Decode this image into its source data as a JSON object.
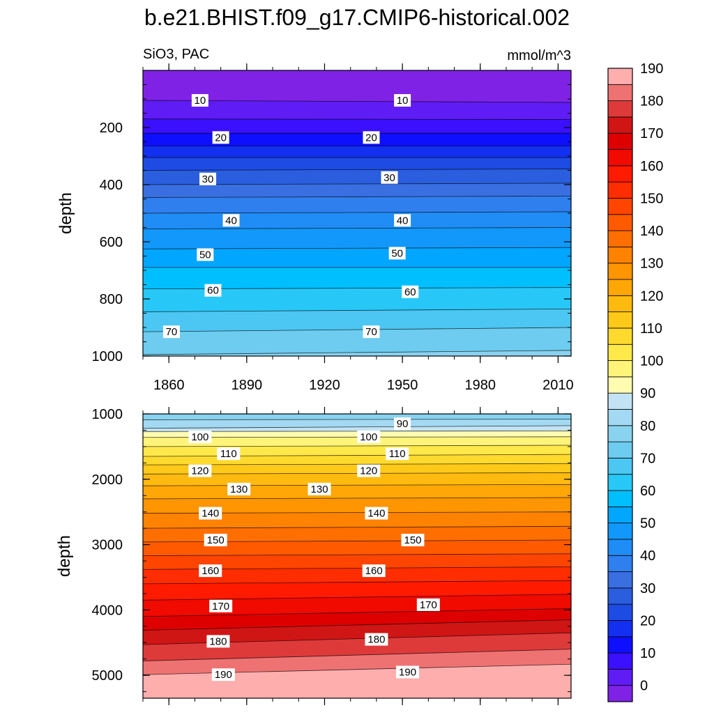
{
  "chart_data": {
    "type": "heatmap",
    "title": "b.e21.BHIST.f09_g17.CMIP6-historical.002",
    "variable_label": "SiO3, PAC",
    "units_label": "mmol/m^3",
    "x": {
      "tick_labels": [
        "1860",
        "1890",
        "1920",
        "1950",
        "1980",
        "2010"
      ],
      "tick_values": [
        1860,
        1890,
        1920,
        1950,
        1980,
        2010
      ],
      "range": [
        1850,
        2015
      ]
    },
    "panels": [
      {
        "name": "upper",
        "ylabel": "depth",
        "ylim": [
          0,
          1000
        ],
        "y_tick_labels": [
          "200",
          "400",
          "600",
          "800",
          "1000"
        ],
        "y_tick_values": [
          200,
          400,
          600,
          800,
          1000
        ],
        "contours": [
          {
            "level": 5,
            "depth_start": 105,
            "depth_end": 112
          },
          {
            "level": 10,
            "depth_start": 170,
            "depth_end": 172
          },
          {
            "level": 15,
            "depth_start": 220,
            "depth_end": 220
          },
          {
            "level": 20,
            "depth_start": 265,
            "depth_end": 265
          },
          {
            "level": 25,
            "depth_start": 305,
            "depth_end": 305
          },
          {
            "level": 30,
            "depth_start": 350,
            "depth_end": 345
          },
          {
            "level": 35,
            "depth_start": 400,
            "depth_end": 395
          },
          {
            "level": 40,
            "depth_start": 445,
            "depth_end": 440
          },
          {
            "level": 45,
            "depth_start": 500,
            "depth_end": 495
          },
          {
            "level": 50,
            "depth_start": 555,
            "depth_end": 550
          },
          {
            "level": 55,
            "depth_start": 625,
            "depth_end": 620
          },
          {
            "level": 60,
            "depth_start": 690,
            "depth_end": 690
          },
          {
            "level": 65,
            "depth_start": 765,
            "depth_end": 760
          },
          {
            "level": 70,
            "depth_start": 845,
            "depth_end": 835
          },
          {
            "level": 75,
            "depth_start": 915,
            "depth_end": 900
          },
          {
            "level": 80,
            "depth_start": 995,
            "depth_end": 980
          }
        ],
        "labels": [
          {
            "text": "10",
            "year": 1872,
            "depth": 105
          },
          {
            "text": "10",
            "year": 1950,
            "depth": 105
          },
          {
            "text": "20",
            "year": 1880,
            "depth": 235
          },
          {
            "text": "20",
            "year": 1938,
            "depth": 235
          },
          {
            "text": "30",
            "year": 1875,
            "depth": 380
          },
          {
            "text": "30",
            "year": 1945,
            "depth": 375
          },
          {
            "text": "40",
            "year": 1884,
            "depth": 525
          },
          {
            "text": "40",
            "year": 1950,
            "depth": 525
          },
          {
            "text": "50",
            "year": 1874,
            "depth": 645
          },
          {
            "text": "50",
            "year": 1948,
            "depth": 640
          },
          {
            "text": "60",
            "year": 1877,
            "depth": 770
          },
          {
            "text": "60",
            "year": 1953,
            "depth": 775
          },
          {
            "text": "70",
            "year": 1861,
            "depth": 915
          },
          {
            "text": "70",
            "year": 1938,
            "depth": 915
          }
        ]
      },
      {
        "name": "lower",
        "ylabel": "depth",
        "ylim": [
          1000,
          5350
        ],
        "y_tick_labels": [
          "1000",
          "2000",
          "3000",
          "4000",
          "5000"
        ],
        "y_tick_values": [
          1000,
          2000,
          3000,
          4000,
          5000
        ],
        "contours": [
          {
            "level": 85,
            "depth_start": 1090,
            "depth_end": 1080
          },
          {
            "level": 90,
            "depth_start": 1220,
            "depth_end": 1180
          },
          {
            "level": 95,
            "depth_start": 1270,
            "depth_end": 1260
          },
          {
            "level": 100,
            "depth_start": 1360,
            "depth_end": 1350
          },
          {
            "level": 105,
            "depth_start": 1500,
            "depth_end": 1480
          },
          {
            "level": 110,
            "depth_start": 1650,
            "depth_end": 1620
          },
          {
            "level": 115,
            "depth_start": 1780,
            "depth_end": 1760
          },
          {
            "level": 120,
            "depth_start": 1920,
            "depth_end": 1900
          },
          {
            "level": 125,
            "depth_start": 2100,
            "depth_end": 2080
          },
          {
            "level": 130,
            "depth_start": 2300,
            "depth_end": 2280
          },
          {
            "level": 135,
            "depth_start": 2520,
            "depth_end": 2500
          },
          {
            "level": 140,
            "depth_start": 2750,
            "depth_end": 2720
          },
          {
            "level": 145,
            "depth_start": 2960,
            "depth_end": 2930
          },
          {
            "level": 150,
            "depth_start": 3170,
            "depth_end": 3140
          },
          {
            "level": 155,
            "depth_start": 3380,
            "depth_end": 3340
          },
          {
            "level": 160,
            "depth_start": 3600,
            "depth_end": 3550
          },
          {
            "level": 165,
            "depth_start": 3850,
            "depth_end": 3760
          },
          {
            "level": 170,
            "depth_start": 4100,
            "depth_end": 3980
          },
          {
            "level": 175,
            "depth_start": 4310,
            "depth_end": 4150
          },
          {
            "level": 180,
            "depth_start": 4530,
            "depth_end": 4350
          },
          {
            "level": 185,
            "depth_start": 4780,
            "depth_end": 4600
          },
          {
            "level": 190,
            "depth_start": 4990,
            "depth_end": 4830
          }
        ],
        "labels": [
          {
            "text": "90",
            "year": 1950,
            "depth": 1150
          },
          {
            "text": "100",
            "year": 1872,
            "depth": 1350
          },
          {
            "text": "100",
            "year": 1937,
            "depth": 1350
          },
          {
            "text": "110",
            "year": 1883,
            "depth": 1610
          },
          {
            "text": "110",
            "year": 1948,
            "depth": 1610
          },
          {
            "text": "120",
            "year": 1872,
            "depth": 1870
          },
          {
            "text": "120",
            "year": 1937,
            "depth": 1870
          },
          {
            "text": "130",
            "year": 1887,
            "depth": 2150
          },
          {
            "text": "130",
            "year": 1918,
            "depth": 2150
          },
          {
            "text": "140",
            "year": 1876,
            "depth": 2520
          },
          {
            "text": "140",
            "year": 1940,
            "depth": 2520
          },
          {
            "text": "150",
            "year": 1878,
            "depth": 2930
          },
          {
            "text": "150",
            "year": 1954,
            "depth": 2930
          },
          {
            "text": "160",
            "year": 1876,
            "depth": 3400
          },
          {
            "text": "160",
            "year": 1939,
            "depth": 3400
          },
          {
            "text": "170",
            "year": 1880,
            "depth": 3940
          },
          {
            "text": "170",
            "year": 1960,
            "depth": 3920
          },
          {
            "text": "180",
            "year": 1879,
            "depth": 4480
          },
          {
            "text": "180",
            "year": 1940,
            "depth": 4450
          },
          {
            "text": "190",
            "year": 1881,
            "depth": 4990
          },
          {
            "text": "190",
            "year": 1952,
            "depth": 4950
          }
        ]
      }
    ],
    "colorbar": {
      "labels": [
        "0",
        "10",
        "20",
        "30",
        "40",
        "50",
        "60",
        "70",
        "80",
        "90",
        "100",
        "110",
        "120",
        "130",
        "140",
        "150",
        "160",
        "170",
        "180",
        "190"
      ],
      "levels": [
        0,
        5,
        10,
        15,
        20,
        25,
        30,
        35,
        40,
        45,
        50,
        55,
        60,
        65,
        70,
        75,
        80,
        85,
        90,
        95,
        100,
        105,
        110,
        115,
        120,
        125,
        130,
        135,
        140,
        145,
        150,
        155,
        160,
        165,
        170,
        175,
        180,
        185,
        190,
        195
      ],
      "colors": [
        "#7F22E6",
        "#5F1CF5",
        "#3A10FF",
        "#0F0FFF",
        "#1330F0",
        "#1E4BE3",
        "#2A5EDE",
        "#3A6FE2",
        "#2F7FEE",
        "#1F8DF5",
        "#1298FA",
        "#00A6FF",
        "#00BFFF",
        "#27C8F7",
        "#4CC6F2",
        "#6DCCF0",
        "#89D2F0",
        "#A3D9F2",
        "#C3E3F4",
        "#FFFBB0",
        "#FFF47A",
        "#FFE84A",
        "#FFDA2E",
        "#FFC91A",
        "#FFBA0F",
        "#FFA706",
        "#FF9500",
        "#FF8300",
        "#FF6F00",
        "#FF5A00",
        "#FF4500",
        "#FF2D00",
        "#FF1A00",
        "#F00A00",
        "#DE0000",
        "#D01515",
        "#DE3A3A",
        "#EF7272",
        "#FFAEAE"
      ]
    }
  }
}
